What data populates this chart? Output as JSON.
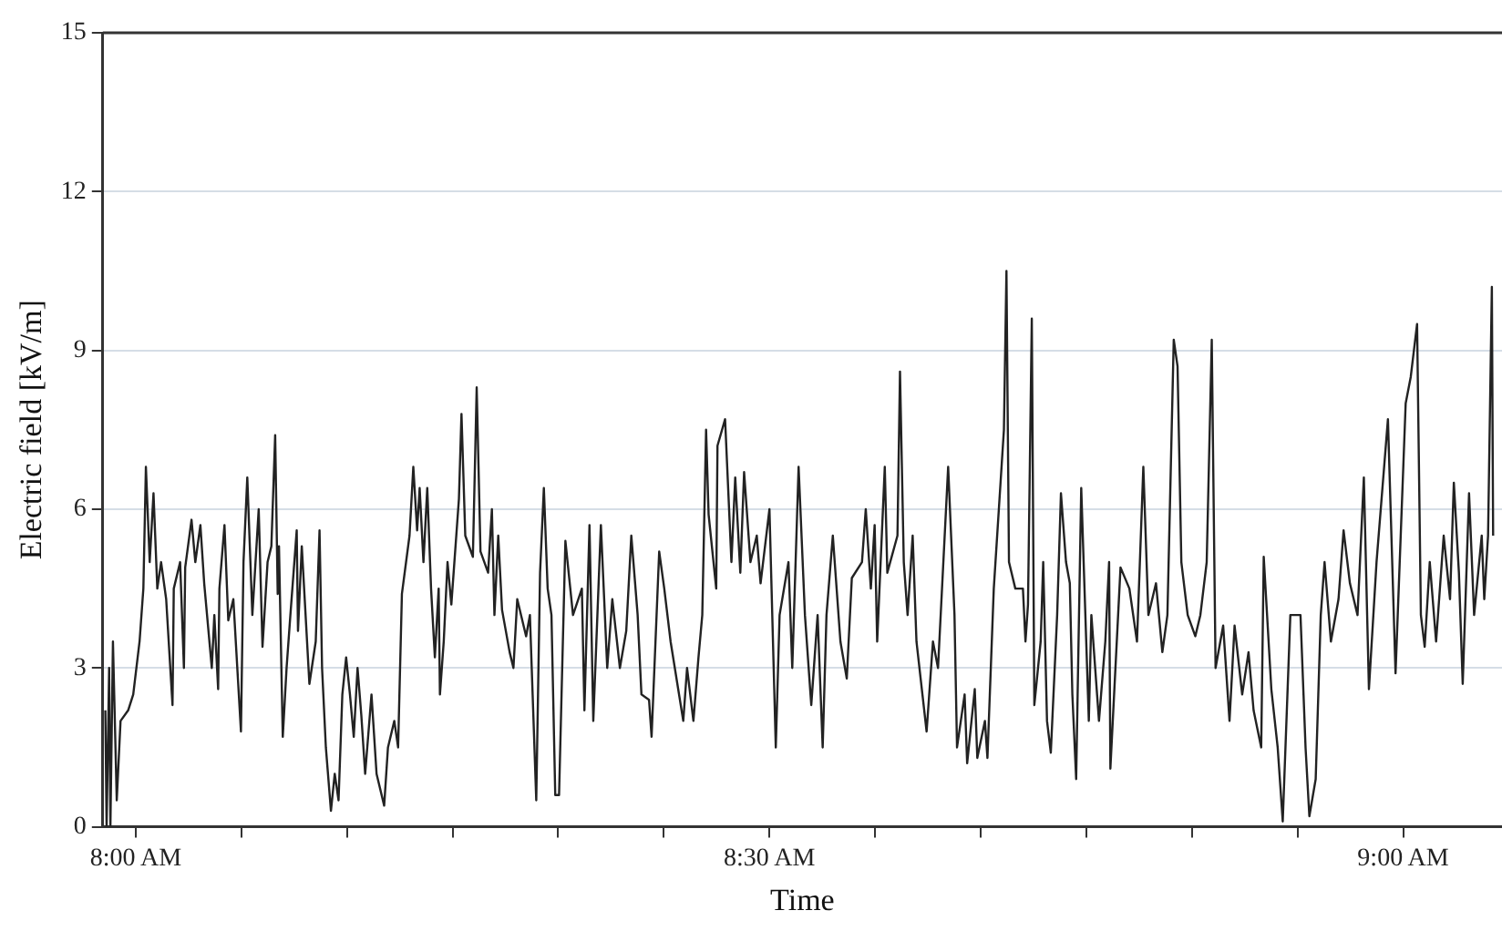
{
  "chart_data": {
    "type": "line",
    "xlabel": "Time",
    "ylabel": "Electric field [kV/m]",
    "xlim": [
      7.974,
      9.078
    ],
    "ylim": [
      0,
      15
    ],
    "xticks": [
      {
        "value": 8,
        "label": "8:00 AM"
      },
      {
        "value": 8.0833,
        "label": null
      },
      {
        "value": 8.1667,
        "label": null
      },
      {
        "value": 8.25,
        "label": null
      },
      {
        "value": 8.3333,
        "label": null
      },
      {
        "value": 8.4167,
        "label": null
      },
      {
        "value": 8.5,
        "label": "8:30 AM"
      },
      {
        "value": 8.5833,
        "label": null
      },
      {
        "value": 8.6667,
        "label": null
      },
      {
        "value": 8.75,
        "label": null
      },
      {
        "value": 8.8333,
        "label": null
      },
      {
        "value": 8.9167,
        "label": null
      },
      {
        "value": 9,
        "label": "9:00 AM"
      }
    ],
    "yticks": [
      0,
      3,
      6,
      9,
      12,
      15
    ],
    "grid": "y",
    "marker": "none",
    "line_style": "solid",
    "series": [
      {
        "color": "#222222",
        "x": [
          7.976,
          7.977,
          7.979,
          7.98,
          7.982,
          7.985,
          7.988,
          7.994,
          7.998,
          8.003,
          8.006,
          8.008,
          8.011,
          8.014,
          8.017,
          8.02,
          8.024,
          8.029,
          8.03,
          8.035,
          8.038,
          8.039,
          8.044,
          8.047,
          8.051,
          8.054,
          8.06,
          8.062,
          8.065,
          8.066,
          8.07,
          8.073,
          8.077,
          8.083,
          8.085,
          8.088,
          8.092,
          8.097,
          8.1,
          8.104,
          8.107,
          8.11,
          8.112,
          8.113,
          8.116,
          8.119,
          8.122,
          8.127,
          8.128,
          8.131,
          8.134,
          8.137,
          8.142,
          8.145,
          8.147,
          8.15,
          8.154,
          8.157,
          8.16,
          8.163,
          8.166,
          8.169,
          8.172,
          8.175,
          8.178,
          8.181,
          8.186,
          8.19,
          8.196,
          8.199,
          8.204,
          8.207,
          8.21,
          8.216,
          8.219,
          8.222,
          8.224,
          8.227,
          8.23,
          8.233,
          8.236,
          8.239,
          8.24,
          8.243,
          8.246,
          8.249,
          8.255,
          8.257,
          8.26,
          8.266,
          8.269,
          8.272,
          8.278,
          8.281,
          8.283,
          8.286,
          8.289,
          8.295,
          8.298,
          8.301,
          8.308,
          8.311,
          8.316,
          8.319,
          8.322,
          8.325,
          8.328,
          8.331,
          8.334,
          8.337,
          8.339,
          8.345,
          8.352,
          8.354,
          8.358,
          8.361,
          8.367,
          8.372,
          8.376,
          8.382,
          8.387,
          8.391,
          8.396,
          8.399,
          8.405,
          8.407,
          8.413,
          8.417,
          8.422,
          8.428,
          8.432,
          8.435,
          8.44,
          8.444,
          8.447,
          8.45,
          8.452,
          8.458,
          8.459,
          8.465,
          8.47,
          8.473,
          8.477,
          8.48,
          8.485,
          8.49,
          8.493,
          8.5,
          8.505,
          8.508,
          8.515,
          8.518,
          8.523,
          8.528,
          8.533,
          8.538,
          8.542,
          8.545,
          8.55,
          8.556,
          8.561,
          8.565,
          8.573,
          8.576,
          8.58,
          8.583,
          8.585,
          8.591,
          8.593,
          8.601,
          8.603,
          8.606,
          8.609,
          8.613,
          8.616,
          8.624,
          8.629,
          8.633,
          8.641,
          8.646,
          8.648,
          8.654,
          8.656,
          8.662,
          8.664,
          8.67,
          8.672,
          8.677,
          8.681,
          8.685,
          8.687,
          8.689,
          8.694,
          8.7,
          8.702,
          8.704,
          8.707,
          8.709,
          8.714,
          8.716,
          8.719,
          8.722,
          8.727,
          8.73,
          8.734,
          8.737,
          8.739,
          8.742,
          8.746,
          8.752,
          8.754,
          8.76,
          8.765,
          8.768,
          8.769,
          8.777,
          8.784,
          8.79,
          8.795,
          8.799,
          8.805,
          8.81,
          8.814,
          8.819,
          8.822,
          8.825,
          8.83,
          8.836,
          8.84,
          8.845,
          8.849,
          8.852,
          8.858,
          8.863,
          8.867,
          8.873,
          8.878,
          8.882,
          8.888,
          8.89,
          8.896,
          8.901,
          8.905,
          8.911,
          8.919,
          8.923,
          8.926,
          8.931,
          8.935,
          8.938,
          8.943,
          8.949,
          8.953,
          8.958,
          8.964,
          8.969,
          8.973,
          8.979,
          8.988,
          8.994,
          9.002,
          9.006,
          9.011,
          9.014,
          9.017,
          9.021,
          9.026,
          9.032,
          9.037,
          9.04,
          9.044,
          9.047,
          9.052,
          9.056,
          9.062,
          9.064,
          9.067,
          9.07,
          9.071
        ],
        "values": [
          2.2,
          0,
          3.0,
          0,
          3.5,
          0.5,
          2.0,
          2.2,
          2.5,
          3.5,
          4.5,
          6.8,
          5.0,
          6.3,
          4.5,
          5.0,
          4.3,
          2.3,
          4.5,
          5.0,
          3.0,
          4.9,
          5.8,
          5.0,
          5.7,
          4.6,
          3.0,
          4.0,
          2.6,
          4.5,
          5.7,
          3.9,
          4.3,
          1.8,
          5.0,
          6.6,
          4.0,
          6.0,
          3.4,
          5.0,
          5.3,
          7.4,
          4.4,
          5.3,
          1.7,
          3.0,
          4.0,
          5.6,
          3.7,
          5.3,
          4.0,
          2.7,
          3.5,
          5.6,
          3.0,
          1.5,
          0.3,
          1.0,
          0.5,
          2.5,
          3.2,
          2.5,
          1.7,
          3.0,
          2.1,
          1.0,
          2.5,
          1.0,
          0.4,
          1.5,
          2.0,
          1.5,
          4.4,
          5.5,
          6.8,
          5.6,
          6.4,
          5.0,
          6.4,
          4.5,
          3.2,
          4.5,
          2.5,
          3.5,
          5.0,
          4.2,
          6.2,
          7.8,
          5.5,
          5.1,
          8.3,
          5.2,
          4.8,
          6.0,
          4.0,
          5.5,
          4.1,
          3.3,
          3.0,
          4.3,
          3.6,
          4.0,
          0.5,
          4.8,
          6.4,
          4.5,
          4.0,
          0.6,
          0.6,
          3.5,
          5.4,
          4.0,
          4.5,
          2.2,
          5.7,
          2.0,
          5.7,
          3.0,
          4.3,
          3.0,
          3.7,
          5.5,
          4.0,
          2.5,
          2.4,
          1.7,
          5.2,
          4.5,
          3.5,
          2.6,
          2.0,
          3.0,
          2.0,
          3.2,
          4.0,
          7.5,
          5.9,
          4.5,
          7.2,
          7.7,
          5.0,
          6.6,
          4.8,
          6.7,
          5.0,
          5.5,
          4.6,
          6.0,
          1.5,
          4.0,
          5.0,
          3.0,
          6.8,
          4.0,
          2.3,
          4.0,
          1.5,
          4.0,
          5.5,
          3.5,
          2.8,
          4.7,
          5.0,
          6.0,
          4.5,
          5.7,
          3.5,
          6.8,
          4.8,
          5.5,
          8.6,
          5.0,
          4.0,
          5.5,
          3.5,
          1.8,
          3.5,
          3.0,
          6.8,
          4.0,
          1.5,
          2.5,
          1.2,
          2.6,
          1.3,
          2.0,
          1.3,
          4.5,
          6.0,
          7.5,
          10.5,
          5.0,
          4.5,
          4.5,
          3.5,
          4.2,
          9.6,
          2.3,
          3.5,
          5.0,
          2.0,
          1.4,
          4.0,
          6.3,
          5.0,
          4.6,
          2.5,
          0.9,
          6.4,
          2.0,
          4.0,
          2.0,
          3.5,
          5.0,
          1.1,
          4.9,
          4.5,
          3.5,
          6.8,
          4.0,
          4.6,
          3.3,
          4.0,
          9.2,
          8.7,
          5.0,
          4.0,
          3.6,
          4.0,
          5.0,
          9.2,
          3.0,
          3.8,
          2.0,
          3.8,
          2.5,
          3.3,
          2.2,
          1.5,
          5.1,
          2.6,
          1.5,
          0.1,
          4.0,
          4.0,
          1.5,
          0.2,
          0.9,
          4.0,
          5.0,
          3.5,
          4.3,
          5.6,
          4.6,
          4.0,
          6.6,
          2.6,
          5.0,
          7.7,
          2.9,
          8.0,
          8.5,
          9.5,
          4.0,
          3.4,
          5.0,
          3.5,
          5.5,
          4.3,
          6.5,
          4.8,
          2.7,
          6.3,
          4.0,
          5.5,
          4.3,
          5.5,
          10.2,
          5.5
        ]
      }
    ]
  }
}
